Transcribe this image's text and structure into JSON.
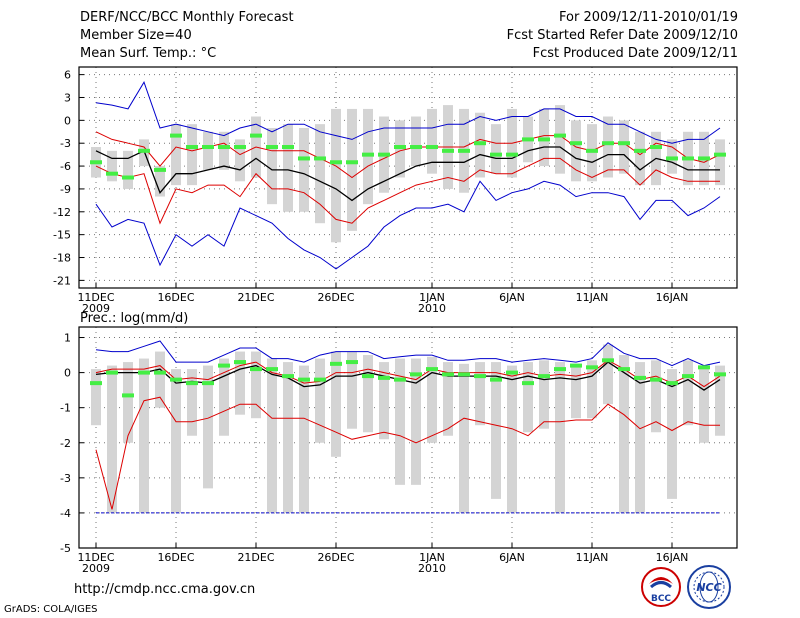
{
  "header": {
    "title": "DERF/NCC/BCC Monthly Forecast",
    "member_size": "Member Size=40",
    "variable": "Mean Surf. Temp.: °C",
    "period": "For 2009/12/11-2010/01/19",
    "started": "Fcst Started Refer Date 2009/12/10",
    "produced": "Fcst Produced Date 2009/12/11"
  },
  "footer": {
    "url": "http://cmdp.ncc.cma.gov.cn",
    "credit": "GrADS: COLA/IGES",
    "logo_bcc": "BCC",
    "logo_ncc": "NCC"
  },
  "colors": {
    "box": "#d4d4d4",
    "median": "#44ee44",
    "mean": "#000000",
    "spread": "#dd0000",
    "extreme": "#0000cc"
  },
  "chart_data": [
    {
      "type": "line",
      "title": "Mean Surf. Temp.: °C",
      "x_tick_labels": [
        "11DEC\n2009",
        "16DEC",
        "21DEC",
        "26DEC",
        "1JAN\n2010",
        "6JAN",
        "11JAN",
        "16JAN"
      ],
      "ylim": [
        -22,
        7
      ],
      "y_ticks": [
        6,
        3,
        0,
        -3,
        -6,
        -9,
        -12,
        -15,
        -18,
        -21
      ],
      "grid": true,
      "days": 40,
      "series": [
        {
          "name": "max",
          "color": "#0000cc",
          "values": [
            2.3,
            2.0,
            1.5,
            5.0,
            -1.0,
            -0.5,
            -1.0,
            -1.5,
            -2.0,
            -1.0,
            -0.5,
            -1.5,
            -0.5,
            -0.5,
            -1.5,
            -2.0,
            -2.5,
            -1.5,
            -1.0,
            -1.0,
            -1.0,
            -1.0,
            -0.5,
            -0.5,
            0.5,
            0.0,
            0.5,
            0.5,
            1.5,
            1.5,
            0.5,
            0.5,
            -0.5,
            -0.5,
            -1.5,
            -2.5,
            -3.0,
            -2.5,
            -2.5,
            -1.0
          ]
        },
        {
          "name": "upper",
          "color": "#dd0000",
          "values": [
            -1.5,
            -2.5,
            -3.0,
            -3.5,
            -6.0,
            -3.5,
            -4.0,
            -3.5,
            -3.0,
            -4.5,
            -3.5,
            -4.0,
            -4.0,
            -4.0,
            -5.0,
            -6.0,
            -7.5,
            -6.0,
            -5.0,
            -4.0,
            -3.5,
            -3.5,
            -3.5,
            -3.5,
            -2.5,
            -3.0,
            -3.0,
            -2.5,
            -2.0,
            -2.0,
            -3.5,
            -4.0,
            -3.0,
            -3.0,
            -4.5,
            -3.0,
            -3.5,
            -5.0,
            -5.5,
            -4.5
          ]
        },
        {
          "name": "mean",
          "color": "#000000",
          "values": [
            -4.0,
            -5.0,
            -5.0,
            -4.0,
            -9.5,
            -7.0,
            -7.0,
            -6.5,
            -6.0,
            -6.5,
            -5.0,
            -6.5,
            -6.5,
            -7.0,
            -8.0,
            -9.0,
            -10.5,
            -9.0,
            -8.0,
            -7.0,
            -6.0,
            -5.5,
            -5.5,
            -5.5,
            -4.5,
            -5.0,
            -5.0,
            -4.0,
            -3.5,
            -3.5,
            -5.0,
            -5.5,
            -4.5,
            -4.5,
            -6.5,
            -5.0,
            -5.5,
            -6.5,
            -6.5,
            -6.5
          ]
        },
        {
          "name": "lower",
          "color": "#dd0000",
          "values": [
            -6.0,
            -7.0,
            -7.5,
            -7.0,
            -13.5,
            -9.0,
            -9.5,
            -8.5,
            -8.5,
            -10.0,
            -7.0,
            -9.0,
            -9.0,
            -9.5,
            -11.0,
            -13.0,
            -13.5,
            -11.5,
            -10.5,
            -9.5,
            -8.5,
            -8.0,
            -7.5,
            -8.0,
            -6.5,
            -7.0,
            -7.0,
            -6.0,
            -5.0,
            -5.0,
            -6.5,
            -7.5,
            -6.5,
            -6.5,
            -8.5,
            -6.5,
            -7.5,
            -8.0,
            -8.0,
            -8.0
          ]
        },
        {
          "name": "min",
          "color": "#0000cc",
          "values": [
            -11.0,
            -14.0,
            -13.0,
            -13.5,
            -19.0,
            -15.0,
            -16.5,
            -15.0,
            -16.5,
            -11.5,
            -12.5,
            -13.5,
            -15.5,
            -17.0,
            -18.0,
            -19.5,
            -18.0,
            -16.5,
            -14.0,
            -12.5,
            -11.5,
            -11.5,
            -11.0,
            -12.0,
            -8.0,
            -10.5,
            -9.5,
            -9.0,
            -8.0,
            -8.5,
            -10.0,
            -9.5,
            -9.5,
            -10.0,
            -13.0,
            -10.5,
            -10.5,
            -12.5,
            -11.5,
            -10.0
          ]
        },
        {
          "name": "box_top",
          "values": [
            -3.5,
            -4.0,
            -4.0,
            -2.5,
            -6.0,
            -0.5,
            -0.5,
            -1.5,
            -1.5,
            -2.5,
            0.5,
            -1.0,
            -0.5,
            -1.0,
            -0.5,
            1.5,
            1.5,
            1.5,
            0.5,
            0.0,
            0.5,
            1.5,
            2.0,
            1.5,
            1.0,
            -0.5,
            1.5,
            0.5,
            1.5,
            2.0,
            0.0,
            -0.5,
            0.5,
            0.0,
            -1.5,
            -1.5,
            -2.5,
            -1.5,
            -1.5,
            -2.5
          ]
        },
        {
          "name": "box_bottom",
          "values": [
            -7.5,
            -8.0,
            -9.0,
            -6.0,
            -10.0,
            -8.5,
            -8.5,
            -6.5,
            -6.5,
            -8.0,
            -7.5,
            -11.0,
            -12.0,
            -12.0,
            -13.5,
            -16.0,
            -14.5,
            -11.0,
            -9.5,
            -7.5,
            -6.0,
            -7.0,
            -9.0,
            -9.5,
            -7.5,
            -7.0,
            -7.5,
            -5.5,
            -6.0,
            -7.0,
            -8.0,
            -8.0,
            -7.5,
            -7.0,
            -8.5,
            -8.5,
            -7.0,
            -8.5,
            -8.5,
            -8.5
          ]
        },
        {
          "name": "median",
          "color": "#44ee44",
          "values": [
            -5.5,
            -7.0,
            -7.5,
            -4.0,
            -6.5,
            -2.0,
            -3.5,
            -3.5,
            -3.5,
            -3.5,
            -2.0,
            -3.5,
            -3.5,
            -5.0,
            -5.0,
            -5.5,
            -5.5,
            -4.5,
            -4.5,
            -3.5,
            -3.5,
            -3.5,
            -4.0,
            -4.0,
            -3.0,
            -4.5,
            -4.5,
            -2.5,
            -2.5,
            -2.0,
            -3.0,
            -4.0,
            -3.0,
            -3.0,
            -4.0,
            -3.5,
            -5.0,
            -5.0,
            -5.0,
            -4.5
          ]
        }
      ]
    },
    {
      "type": "line",
      "title": "Prec.: log(mm/d)",
      "x_tick_labels": [
        "11DEC\n2009",
        "16DEC",
        "21DEC",
        "26DEC",
        "1JAN\n2010",
        "6JAN",
        "11JAN",
        "16JAN"
      ],
      "ylim": [
        -5,
        1.3
      ],
      "y_ticks": [
        1,
        0,
        -1,
        -2,
        -3,
        -4,
        -5
      ],
      "grid": true,
      "days": 40,
      "series": [
        {
          "name": "max",
          "color": "#0000cc",
          "values": [
            0.65,
            0.6,
            0.6,
            0.75,
            0.9,
            0.3,
            0.3,
            0.3,
            0.5,
            0.7,
            0.7,
            0.4,
            0.4,
            0.3,
            0.5,
            0.6,
            0.6,
            0.6,
            0.4,
            0.45,
            0.5,
            0.5,
            0.35,
            0.35,
            0.4,
            0.4,
            0.3,
            0.35,
            0.4,
            0.35,
            0.3,
            0.4,
            0.85,
            0.55,
            0.4,
            0.4,
            0.2,
            0.4,
            0.2,
            0.3
          ]
        },
        {
          "name": "upper",
          "color": "#dd0000",
          "values": [
            0.0,
            0.1,
            0.1,
            0.1,
            0.2,
            -0.2,
            -0.15,
            -0.2,
            0.0,
            0.2,
            0.3,
            0.0,
            -0.1,
            -0.3,
            -0.25,
            0.0,
            0.0,
            0.1,
            0.0,
            -0.1,
            -0.2,
            0.1,
            0.0,
            0.0,
            0.0,
            0.0,
            -0.1,
            0.0,
            -0.1,
            -0.05,
            -0.1,
            0.0,
            0.35,
            0.1,
            -0.2,
            -0.1,
            -0.3,
            -0.1,
            -0.4,
            -0.1
          ]
        },
        {
          "name": "mean",
          "color": "#000000",
          "values": [
            -0.05,
            0.0,
            0.0,
            0.0,
            0.1,
            -0.3,
            -0.25,
            -0.3,
            -0.1,
            0.1,
            0.2,
            -0.05,
            -0.15,
            -0.4,
            -0.35,
            -0.1,
            -0.1,
            0.0,
            -0.1,
            -0.2,
            -0.3,
            0.0,
            -0.1,
            -0.1,
            -0.1,
            -0.1,
            -0.2,
            -0.1,
            -0.2,
            -0.15,
            -0.2,
            -0.1,
            0.3,
            0.0,
            -0.3,
            -0.2,
            -0.4,
            -0.2,
            -0.5,
            -0.2
          ]
        },
        {
          "name": "lower",
          "color": "#dd0000",
          "values": [
            -2.2,
            -3.9,
            -1.8,
            -0.8,
            -0.7,
            -1.4,
            -1.4,
            -1.3,
            -1.1,
            -0.9,
            -0.9,
            -1.3,
            -1.3,
            -1.3,
            -1.5,
            -1.7,
            -1.9,
            -1.8,
            -1.7,
            -1.8,
            -2.0,
            -1.8,
            -1.6,
            -1.3,
            -1.4,
            -1.5,
            -1.6,
            -1.8,
            -1.4,
            -1.4,
            -1.35,
            -1.35,
            -0.9,
            -1.2,
            -1.6,
            -1.4,
            -1.65,
            -1.4,
            -1.5,
            -1.5
          ]
        },
        {
          "name": "min",
          "color": "#0000cc",
          "values": [
            -4.0,
            -4.0,
            -4.0,
            -4.0,
            -4.0,
            -4.0,
            -4.0,
            -4.0,
            -4.0,
            -4.0,
            -4.0,
            -4.0,
            -4.0,
            -4.0,
            -4.0,
            -4.0,
            -4.0,
            -4.0,
            -4.0,
            -4.0,
            -4.0,
            -4.0,
            -4.0,
            -4.0,
            -4.0,
            -4.0,
            -4.0,
            -4.0,
            -4.0,
            -4.0,
            -4.0,
            -4.0,
            -4.0,
            -4.0,
            -4.0,
            -4.0,
            -4.0,
            -4.0,
            -4.0,
            -4.0
          ]
        },
        {
          "name": "box_top",
          "values": [
            0.1,
            0.2,
            0.3,
            0.4,
            0.6,
            0.1,
            0.1,
            0.2,
            0.4,
            0.6,
            0.6,
            0.4,
            0.3,
            0.2,
            0.4,
            0.6,
            0.6,
            0.5,
            0.3,
            0.4,
            0.4,
            0.45,
            0.3,
            0.25,
            0.3,
            0.3,
            0.2,
            0.3,
            0.35,
            0.3,
            0.25,
            0.35,
            0.8,
            0.5,
            0.3,
            0.35,
            0.1,
            0.35,
            0.1,
            0.2
          ]
        },
        {
          "name": "box_bottom",
          "values": [
            -1.5,
            -4.0,
            -2.0,
            -4.0,
            -1.0,
            -4.0,
            -1.8,
            -3.3,
            -1.8,
            -1.2,
            -1.3,
            -4.0,
            -4.0,
            -4.0,
            -2.0,
            -2.4,
            -1.6,
            -1.7,
            -1.9,
            -3.2,
            -3.2,
            -2.0,
            -1.8,
            -4.0,
            -1.5,
            -3.6,
            -4.0,
            -1.7,
            -1.6,
            -4.0,
            -1.3,
            -1.3,
            -0.9,
            -4.0,
            -4.0,
            -1.7,
            -3.6,
            -1.5,
            -2.0,
            -1.8
          ]
        },
        {
          "name": "median",
          "color": "#44ee44",
          "values": [
            -0.3,
            0.0,
            -0.65,
            0.0,
            0.0,
            -0.2,
            -0.3,
            -0.3,
            0.2,
            0.3,
            0.1,
            0.1,
            -0.1,
            -0.2,
            -0.2,
            0.25,
            0.3,
            -0.1,
            -0.15,
            -0.2,
            -0.05,
            0.1,
            -0.05,
            -0.05,
            -0.1,
            -0.2,
            0.0,
            -0.3,
            -0.1,
            0.1,
            0.2,
            0.15,
            0.35,
            0.1,
            -0.15,
            -0.2,
            -0.3,
            -0.1,
            0.15,
            -0.05
          ]
        }
      ]
    }
  ]
}
